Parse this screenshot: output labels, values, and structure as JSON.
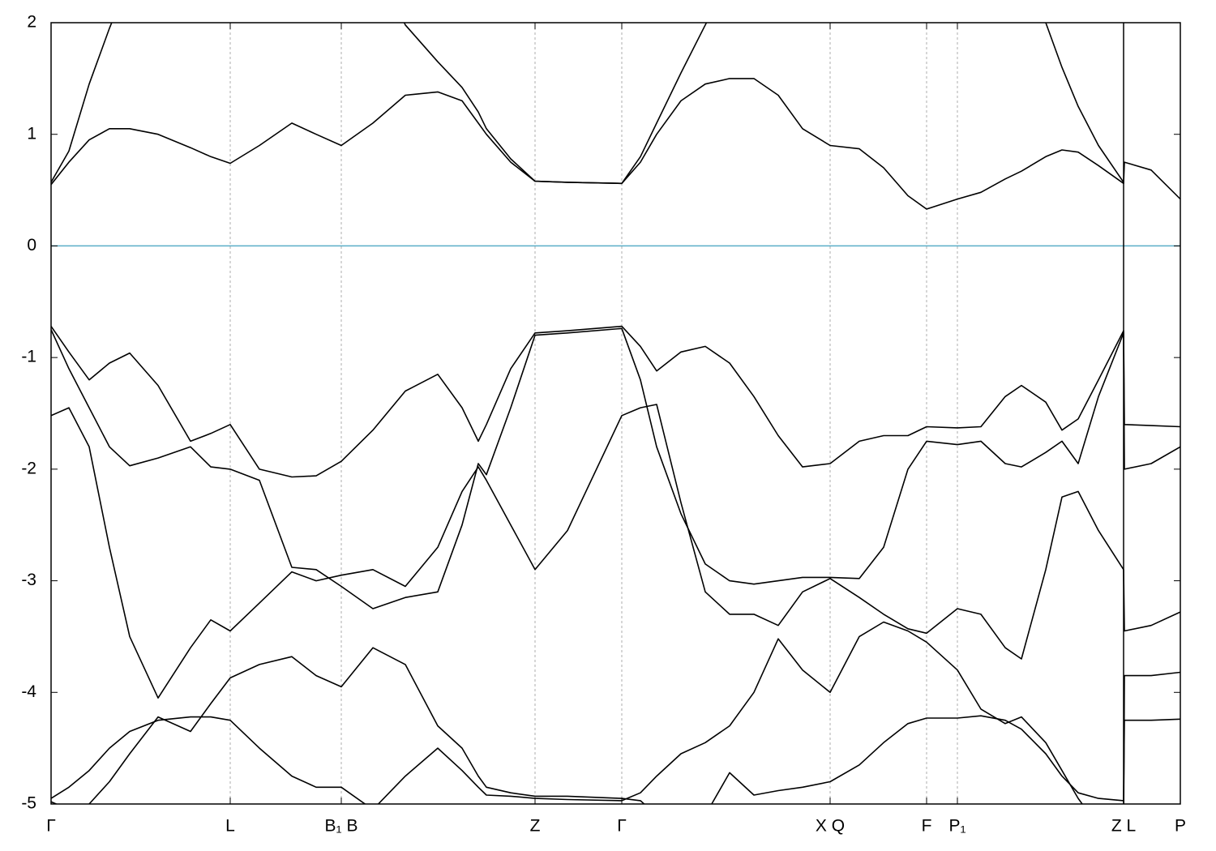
{
  "chart_data": {
    "type": "line",
    "x": [
      0,
      22,
      47,
      72,
      97,
      132,
      172,
      197,
      221,
      257,
      297,
      327,
      358,
      397,
      437,
      477,
      507,
      527,
      537,
      567,
      597,
      637,
      704,
      727,
      747,
      777,
      807,
      837,
      867,
      897,
      927,
      961,
      997,
      1027,
      1057,
      1080,
      1118,
      1147,
      1177,
      1197,
      1227,
      1247,
      1267,
      1292,
      1323,
      1324,
      1357,
      1393
    ],
    "xlim": [
      0,
      1393
    ],
    "xticks": [
      {
        "value": 0,
        "label": "Γ"
      },
      {
        "value": 221,
        "label": "L"
      },
      {
        "value": 358,
        "label": "B₁ B"
      },
      {
        "value": 597,
        "label": "Z"
      },
      {
        "value": 704,
        "label": "Γ"
      },
      {
        "value": 961,
        "label": "X Q"
      },
      {
        "value": 1080,
        "label": "F"
      },
      {
        "value": 1118,
        "label": "P₁"
      },
      {
        "value": 1323,
        "label": "Z L"
      },
      {
        "value": 1393,
        "label": "P"
      }
    ],
    "x_breaks": [
      1323
    ],
    "ylim": [
      -5,
      2
    ],
    "yticks": [
      -5,
      -4,
      -3,
      -2,
      -1,
      0,
      1,
      2
    ],
    "hlines": [
      {
        "value": 0,
        "color": "#5aaec8"
      }
    ],
    "grid": true,
    "series": [
      {
        "color": "#000000",
        "values": [
          0.55,
          0.75,
          0.95,
          1.05,
          1.05,
          1.0,
          0.88,
          0.8,
          0.74,
          0.9,
          1.1,
          1.0,
          0.9,
          1.1,
          1.35,
          1.38,
          1.3,
          1.1,
          1.0,
          0.75,
          0.58,
          0.57,
          0.56,
          0.75,
          1.0,
          1.3,
          1.45,
          1.5,
          1.5,
          1.35,
          1.05,
          0.9,
          0.87,
          0.7,
          0.45,
          0.33,
          0.42,
          0.48,
          0.6,
          0.67,
          0.8,
          0.86,
          0.84,
          0.72,
          0.56,
          0.75,
          0.68,
          0.42
        ]
      },
      {
        "color": "#000000",
        "values": [
          0.57,
          0.85,
          1.45,
          1.95,
          2.4,
          null,
          null,
          null,
          null,
          null,
          null,
          null,
          null,
          2.6,
          1.98,
          1.65,
          1.42,
          1.2,
          1.05,
          0.78,
          0.58,
          0.57,
          0.56,
          0.8,
          1.1,
          1.55,
          1.98,
          2.4,
          null,
          null,
          null,
          null,
          null,
          null,
          null,
          null,
          null,
          null,
          null,
          2.6,
          2.0,
          1.6,
          1.25,
          0.9,
          0.57,
          null,
          null,
          null
        ]
      },
      {
        "color": "#000000",
        "values": [
          -0.72,
          -0.95,
          -1.2,
          -1.05,
          -0.96,
          -1.25,
          -1.75,
          -1.68,
          -1.6,
          -2.0,
          -2.07,
          -2.06,
          -1.93,
          -1.65,
          -1.3,
          -1.15,
          -1.45,
          -1.75,
          -1.6,
          -1.1,
          -0.78,
          -0.76,
          -0.72,
          -0.9,
          -1.12,
          -0.95,
          -0.9,
          -1.05,
          -1.35,
          -1.7,
          -1.98,
          -1.95,
          -1.75,
          -1.7,
          -1.7,
          -1.62,
          -1.63,
          -1.62,
          -1.35,
          -1.25,
          -1.4,
          -1.65,
          -1.55,
          -1.2,
          -0.76,
          -1.6,
          -1.61,
          -1.62
        ]
      },
      {
        "color": "#000000",
        "values": [
          -0.75,
          -1.1,
          -1.45,
          -1.8,
          -1.97,
          -1.9,
          -1.8,
          -1.98,
          -2.0,
          -2.1,
          -2.88,
          -2.9,
          -3.05,
          -3.25,
          -3.15,
          -3.1,
          -2.5,
          -1.95,
          -2.05,
          -1.45,
          -0.8,
          -0.78,
          -0.74,
          -1.2,
          -1.8,
          -2.4,
          -2.85,
          -3.0,
          -3.03,
          -3.0,
          -2.97,
          -2.97,
          -2.98,
          -2.7,
          -2.0,
          -1.75,
          -1.78,
          -1.75,
          -1.95,
          -1.98,
          -1.85,
          -1.75,
          -1.95,
          -1.35,
          -0.78,
          -2.0,
          -1.95,
          -1.8
        ]
      },
      {
        "color": "#000000",
        "values": [
          -1.52,
          -1.45,
          -1.8,
          -2.7,
          -3.5,
          -4.05,
          -3.6,
          -3.35,
          -3.45,
          -3.2,
          -2.92,
          -3.0,
          -2.95,
          -2.9,
          -3.05,
          -2.7,
          -2.2,
          -1.98,
          -2.1,
          -2.5,
          -2.9,
          -2.55,
          -1.52,
          -1.45,
          -1.42,
          -2.3,
          -3.1,
          -3.3,
          -3.3,
          -3.4,
          -3.1,
          -2.98,
          -3.15,
          -3.3,
          -3.43,
          -3.47,
          -3.25,
          -3.3,
          -3.6,
          -3.7,
          -2.9,
          -2.25,
          -2.2,
          -2.55,
          -2.9,
          -3.45,
          -3.4,
          -3.28
        ]
      },
      {
        "color": "#000000",
        "values": [
          -4.95,
          -4.85,
          -4.7,
          -4.5,
          -4.35,
          -4.25,
          -4.22,
          -4.22,
          -4.25,
          -4.5,
          -4.75,
          -4.85,
          -4.85,
          -5.05,
          -4.75,
          -4.5,
          -4.7,
          -4.85,
          -4.92,
          -4.93,
          -4.95,
          -4.96,
          -4.97,
          -4.9,
          -4.75,
          -4.55,
          -4.45,
          -4.3,
          -4.0,
          -3.52,
          -3.8,
          -4.0,
          -3.5,
          -3.37,
          -3.45,
          -3.55,
          -3.8,
          -4.15,
          -4.28,
          -4.22,
          -4.45,
          -4.7,
          -4.95,
          -5.2,
          -5.3,
          -3.85,
          -3.85,
          -3.82
        ]
      },
      {
        "color": "#000000",
        "values": [
          -4.98,
          -5.05,
          -5.0,
          -4.8,
          -4.55,
          -4.22,
          -4.35,
          -4.1,
          -3.87,
          -3.75,
          -3.68,
          -3.85,
          -3.95,
          -3.6,
          -3.75,
          -4.3,
          -4.5,
          -4.75,
          -4.85,
          -4.9,
          -4.93,
          -4.93,
          -4.95,
          -4.97,
          -5.1,
          -5.3,
          -5.1,
          -4.72,
          -4.92,
          -4.88,
          -4.85,
          -4.8,
          -4.65,
          -4.45,
          -4.28,
          -4.23,
          -4.23,
          -4.21,
          -4.25,
          -4.33,
          -4.55,
          -4.75,
          -4.9,
          -4.95,
          -4.97,
          -4.25,
          -4.25,
          -4.24
        ]
      }
    ]
  }
}
